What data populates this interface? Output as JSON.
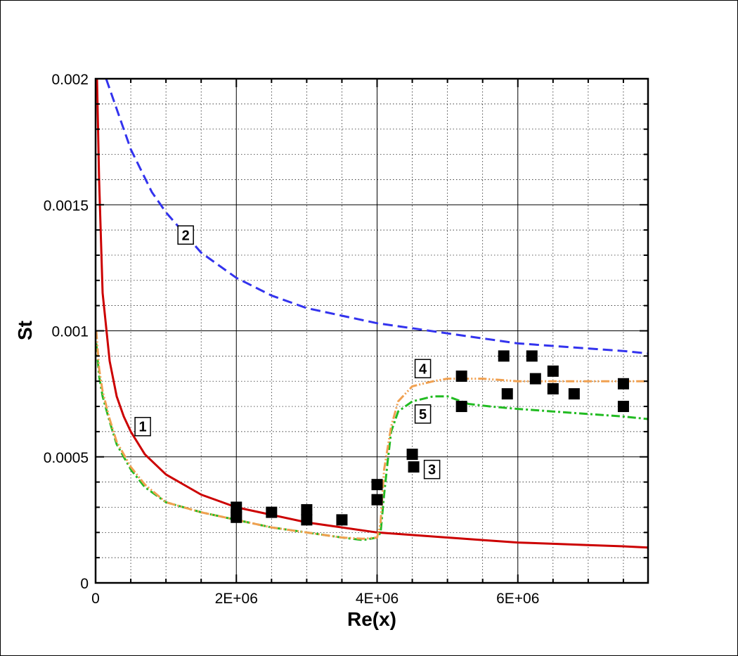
{
  "chart_data": {
    "type": "line",
    "xlabel": "Re(x)",
    "ylabel": "St",
    "xlim": [
      0,
      7850000
    ],
    "ylim": [
      0,
      0.002
    ],
    "grid": true,
    "x_ticks": [
      {
        "value": 0,
        "label": "0"
      },
      {
        "value": 2000000,
        "label": "2E+06"
      },
      {
        "value": 4000000,
        "label": "4E+06"
      },
      {
        "value": 6000000,
        "label": "6E+06"
      }
    ],
    "y_ticks": [
      {
        "value": 0,
        "label": "0"
      },
      {
        "value": 0.0005,
        "label": "0.0005"
      },
      {
        "value": 0.001,
        "label": "0.001"
      },
      {
        "value": 0.0015,
        "label": "0.0015"
      },
      {
        "value": 0.002,
        "label": "0.002"
      }
    ],
    "series": [
      {
        "label": "1",
        "color": "#cc0000",
        "dash": "solid",
        "label_at": [
          670000,
          0.00062
        ],
        "points": [
          [
            20000,
            0.002
          ],
          [
            50000,
            0.0016
          ],
          [
            100000,
            0.00115
          ],
          [
            200000,
            0.00088
          ],
          [
            300000,
            0.00074
          ],
          [
            400000,
            0.00066
          ],
          [
            500000,
            0.0006
          ],
          [
            700000,
            0.00051
          ],
          [
            1000000,
            0.00043
          ],
          [
            1500000,
            0.00035
          ],
          [
            2000000,
            0.0003
          ],
          [
            2500000,
            0.00027
          ],
          [
            3000000,
            0.00024
          ],
          [
            3500000,
            0.00022
          ],
          [
            4000000,
            0.0002
          ],
          [
            4500000,
            0.00019
          ],
          [
            5000000,
            0.00018
          ],
          [
            5500000,
            0.00017
          ],
          [
            6000000,
            0.00016
          ],
          [
            6500000,
            0.000155
          ],
          [
            7000000,
            0.00015
          ],
          [
            7500000,
            0.000145
          ],
          [
            7850000,
            0.00014
          ]
        ]
      },
      {
        "label": "2",
        "color": "#3333ee",
        "dash": "long-dash",
        "label_at": [
          1280000,
          0.00138
        ],
        "points": [
          [
            150000,
            0.002
          ],
          [
            300000,
            0.00188
          ],
          [
            500000,
            0.00172
          ],
          [
            800000,
            0.00155
          ],
          [
            1000000,
            0.00147
          ],
          [
            1500000,
            0.00131
          ],
          [
            2000000,
            0.00121
          ],
          [
            2500000,
            0.00114
          ],
          [
            3000000,
            0.00109
          ],
          [
            3500000,
            0.00106
          ],
          [
            4000000,
            0.00103
          ],
          [
            4500000,
            0.00101
          ],
          [
            5000000,
            0.00099
          ],
          [
            5500000,
            0.00097
          ],
          [
            6000000,
            0.00095
          ],
          [
            6500000,
            0.00094
          ],
          [
            7000000,
            0.00093
          ],
          [
            7500000,
            0.00092
          ],
          [
            7850000,
            0.00091
          ]
        ]
      },
      {
        "label": "3",
        "color": "#22bb22",
        "dash": "dash-dot",
        "label_at": [
          4780000,
          0.00045
        ],
        "points": [
          [
            10000,
            0.00095
          ],
          [
            50000,
            0.00082
          ],
          [
            100000,
            0.00074
          ],
          [
            200000,
            0.00064
          ],
          [
            300000,
            0.00055
          ],
          [
            500000,
            0.00045
          ],
          [
            700000,
            0.00038
          ],
          [
            1000000,
            0.00032
          ],
          [
            1500000,
            0.00028
          ],
          [
            2000000,
            0.00025
          ],
          [
            2500000,
            0.00022
          ],
          [
            3000000,
            0.0002
          ],
          [
            3500000,
            0.00018
          ],
          [
            3800000,
            0.00017
          ],
          [
            4000000,
            0.00018
          ],
          [
            4050000,
            0.0002
          ],
          [
            4100000,
            0.00035
          ],
          [
            4150000,
            0.00048
          ],
          [
            4200000,
            0.0006
          ],
          [
            4300000,
            0.00068
          ],
          [
            4500000,
            0.00072
          ],
          [
            4800000,
            0.00074
          ],
          [
            5000000,
            0.00074
          ],
          [
            5300000,
            0.00071
          ],
          [
            5600000,
            0.0007
          ],
          [
            6000000,
            0.00069
          ],
          [
            6500000,
            0.00068
          ],
          [
            7000000,
            0.00067
          ],
          [
            7500000,
            0.00066
          ],
          [
            7850000,
            0.00065
          ]
        ]
      },
      {
        "label": "4",
        "color": "#f0a050",
        "dash": "dash-dot-dot",
        "label_at": [
          4650000,
          0.00085
        ],
        "points": [
          [
            10000,
            0.001
          ],
          [
            50000,
            0.00085
          ],
          [
            100000,
            0.00076
          ],
          [
            200000,
            0.00065
          ],
          [
            300000,
            0.00056
          ],
          [
            500000,
            0.00046
          ],
          [
            700000,
            0.00039
          ],
          [
            1000000,
            0.00032
          ],
          [
            1500000,
            0.00028
          ],
          [
            2000000,
            0.00025
          ],
          [
            2500000,
            0.00022
          ],
          [
            3000000,
            0.0002
          ],
          [
            3500000,
            0.00018
          ],
          [
            3800000,
            0.000175
          ],
          [
            4000000,
            0.00018
          ],
          [
            4050000,
            0.00024
          ],
          [
            4100000,
            0.00045
          ],
          [
            4200000,
            0.00062
          ],
          [
            4300000,
            0.00072
          ],
          [
            4500000,
            0.00078
          ],
          [
            4800000,
            0.0008
          ],
          [
            5000000,
            0.00081
          ],
          [
            5500000,
            0.00081
          ],
          [
            6000000,
            0.0008
          ],
          [
            6500000,
            0.0008
          ],
          [
            7000000,
            0.0008
          ],
          [
            7500000,
            0.0008
          ],
          [
            7850000,
            0.0008
          ]
        ]
      }
    ],
    "markers": {
      "label": "5",
      "label_at": [
        4650000,
        0.00067
      ],
      "color": "#000000",
      "shape": "square",
      "points": [
        [
          2000000,
          0.0003
        ],
        [
          2000000,
          0.00027
        ],
        [
          2000000,
          0.00026
        ],
        [
          2500000,
          0.00028
        ],
        [
          3000000,
          0.00029
        ],
        [
          3000000,
          0.00025
        ],
        [
          3500000,
          0.00025
        ],
        [
          4000000,
          0.00039
        ],
        [
          4000000,
          0.00033
        ],
        [
          4500000,
          0.00051
        ],
        [
          4520000,
          0.00046
        ],
        [
          5200000,
          0.00082
        ],
        [
          5200000,
          0.0007
        ],
        [
          5800000,
          0.0009
        ],
        [
          5850000,
          0.00075
        ],
        [
          6200000,
          0.0009
        ],
        [
          6250000,
          0.00081
        ],
        [
          6500000,
          0.00084
        ],
        [
          6500000,
          0.00077
        ],
        [
          6800000,
          0.00075
        ],
        [
          7500000,
          0.00079
        ],
        [
          7500000,
          0.0007
        ]
      ]
    }
  }
}
